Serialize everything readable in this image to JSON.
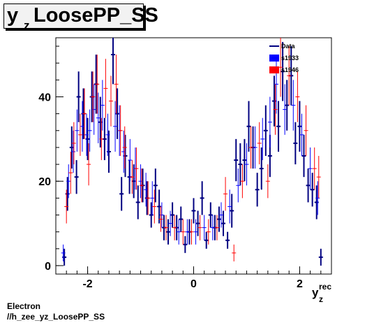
{
  "title": {
    "main": "y",
    "sub": "z",
    "rest": "LoosePP_SS"
  },
  "footer": {
    "line1": "Electron",
    "line2": "//h_zee_yz_LoosePP_SS"
  },
  "chart_data": {
    "type": "scatter",
    "xlabel": {
      "main": "y",
      "sub": "z",
      "sup": "rec"
    },
    "ylabel": "",
    "xlim": [
      -2.6,
      2.6
    ],
    "ylim": [
      -2,
      54
    ],
    "x_ticks": [
      -2,
      0,
      2
    ],
    "x_tick_labels": [
      "-2",
      "0",
      "2"
    ],
    "y_ticks": [
      0,
      20,
      40
    ],
    "y_tick_labels": [
      "0",
      "20",
      "40"
    ],
    "grid": false,
    "legend_placement": "top-right",
    "legend": [
      {
        "label": "Data",
        "color": "#000080",
        "marker": "line"
      },
      {
        "label": "s1933",
        "color": "#0000ff",
        "marker": "box"
      },
      {
        "label": "s1946",
        "color": "#ff0000",
        "marker": "box"
      }
    ],
    "series": [
      {
        "name": "Data",
        "color": "#000080",
        "points": [
          [
            -2.44,
            2,
            2
          ],
          [
            -2.38,
            17,
            4
          ],
          [
            -2.3,
            28,
            5
          ],
          [
            -2.21,
            21,
            4
          ],
          [
            -2.17,
            40,
            6
          ],
          [
            -2.08,
            36,
            6
          ],
          [
            -2.0,
            30,
            5
          ],
          [
            -1.92,
            40,
            6
          ],
          [
            -1.84,
            43,
            7
          ],
          [
            -1.76,
            34,
            6
          ],
          [
            -1.68,
            30,
            5
          ],
          [
            -1.6,
            27,
            5
          ],
          [
            -1.52,
            50,
            7
          ],
          [
            -1.44,
            36,
            6
          ],
          [
            -1.36,
            17,
            4
          ],
          [
            -1.29,
            26,
            5
          ],
          [
            -1.21,
            21,
            4
          ],
          [
            -1.13,
            20,
            4
          ],
          [
            -1.05,
            15,
            4
          ],
          [
            -0.96,
            19,
            4
          ],
          [
            -0.88,
            16,
            4
          ],
          [
            -0.8,
            12,
            3
          ],
          [
            -0.72,
            19,
            4
          ],
          [
            -0.65,
            14,
            4
          ],
          [
            -0.56,
            9,
            3
          ],
          [
            -0.48,
            8,
            3
          ],
          [
            -0.4,
            12,
            3
          ],
          [
            -0.32,
            9,
            3
          ],
          [
            -0.24,
            11,
            3
          ],
          [
            -0.16,
            5,
            2
          ],
          [
            -0.08,
            8,
            3
          ],
          [
            0.0,
            13,
            3
          ],
          [
            0.08,
            10,
            3
          ],
          [
            0.16,
            16,
            4
          ],
          [
            0.24,
            6,
            2
          ],
          [
            0.32,
            12,
            3
          ],
          [
            0.4,
            9,
            3
          ],
          [
            0.48,
            11,
            3
          ],
          [
            0.56,
            10,
            3
          ],
          [
            0.64,
            6,
            2
          ],
          [
            0.72,
            13,
            4
          ],
          [
            0.8,
            25,
            5
          ],
          [
            0.88,
            24,
            5
          ],
          [
            0.96,
            25,
            5
          ],
          [
            1.04,
            33,
            6
          ],
          [
            1.12,
            28,
            5
          ],
          [
            1.2,
            18,
            4
          ],
          [
            1.28,
            23,
            5
          ],
          [
            1.36,
            32,
            6
          ],
          [
            1.44,
            26,
            5
          ],
          [
            1.52,
            39,
            6
          ],
          [
            1.6,
            33,
            6
          ],
          [
            1.68,
            46,
            7
          ],
          [
            1.76,
            38,
            6
          ],
          [
            1.84,
            45,
            7
          ],
          [
            1.92,
            29,
            5
          ],
          [
            2.0,
            33,
            6
          ],
          [
            2.08,
            26,
            5
          ],
          [
            2.16,
            19,
            4
          ],
          [
            2.24,
            18,
            4
          ],
          [
            2.32,
            15,
            4
          ],
          [
            2.4,
            2,
            2
          ]
        ]
      },
      {
        "name": "s1933",
        "color": "#0000ff",
        "points": [
          [
            -2.46,
            3,
            2
          ],
          [
            -2.36,
            20,
            4
          ],
          [
            -2.27,
            27,
            5
          ],
          [
            -2.2,
            32,
            5
          ],
          [
            -2.1,
            33,
            6
          ],
          [
            -2.02,
            31,
            5
          ],
          [
            -1.96,
            32,
            5
          ],
          [
            -1.88,
            37,
            6
          ],
          [
            -1.8,
            35,
            6
          ],
          [
            -1.72,
            38,
            6
          ],
          [
            -1.62,
            31,
            5
          ],
          [
            -1.48,
            33,
            6
          ],
          [
            -1.4,
            32,
            6
          ],
          [
            -1.32,
            27,
            5
          ],
          [
            -1.2,
            25,
            5
          ],
          [
            -1.1,
            23,
            5
          ],
          [
            -1.0,
            20,
            4
          ],
          [
            -0.9,
            18,
            4
          ],
          [
            -0.78,
            16,
            4
          ],
          [
            -0.6,
            12,
            3
          ],
          [
            -0.44,
            10,
            3
          ],
          [
            -0.28,
            8,
            3
          ],
          [
            -0.12,
            8,
            3
          ],
          [
            0.04,
            8,
            3
          ],
          [
            0.2,
            9,
            3
          ],
          [
            0.36,
            9,
            3
          ],
          [
            0.52,
            12,
            3
          ],
          [
            0.68,
            14,
            4
          ],
          [
            0.84,
            19,
            4
          ],
          [
            1.0,
            24,
            5
          ],
          [
            1.16,
            28,
            5
          ],
          [
            1.3,
            30,
            5
          ],
          [
            1.44,
            34,
            6
          ],
          [
            1.56,
            43,
            7
          ],
          [
            1.72,
            37,
            6
          ],
          [
            1.88,
            38,
            6
          ],
          [
            2.04,
            31,
            5
          ],
          [
            2.2,
            23,
            5
          ],
          [
            2.34,
            16,
            4
          ]
        ]
      },
      {
        "name": "s1946",
        "color": "#ff0000",
        "points": [
          [
            -2.4,
            14,
            4
          ],
          [
            -2.32,
            22,
            5
          ],
          [
            -2.26,
            29,
            5
          ],
          [
            -2.14,
            31,
            5
          ],
          [
            -2.06,
            36,
            6
          ],
          [
            -1.98,
            24,
            5
          ],
          [
            -1.9,
            40,
            6
          ],
          [
            -1.82,
            43,
            7
          ],
          [
            -1.74,
            30,
            5
          ],
          [
            -1.66,
            42,
            7
          ],
          [
            -1.56,
            39,
            6
          ],
          [
            -1.46,
            43,
            7
          ],
          [
            -1.38,
            32,
            6
          ],
          [
            -1.3,
            28,
            5
          ],
          [
            -1.16,
            21,
            4
          ],
          [
            -1.08,
            23,
            5
          ],
          [
            -0.98,
            19,
            4
          ],
          [
            -0.86,
            16,
            4
          ],
          [
            -0.74,
            14,
            4
          ],
          [
            -0.62,
            11,
            3
          ],
          [
            -0.52,
            9,
            3
          ],
          [
            -0.36,
            9,
            3
          ],
          [
            -0.2,
            8,
            3
          ],
          [
            -0.04,
            8,
            3
          ],
          [
            0.12,
            9,
            3
          ],
          [
            0.28,
            8,
            3
          ],
          [
            0.44,
            9,
            3
          ],
          [
            0.6,
            17,
            4
          ],
          [
            0.76,
            3,
            2
          ],
          [
            0.92,
            20,
            4
          ],
          [
            1.08,
            28,
            5
          ],
          [
            1.24,
            29,
            5
          ],
          [
            1.4,
            20,
            4
          ],
          [
            1.54,
            37,
            6
          ],
          [
            1.64,
            47,
            7
          ],
          [
            1.8,
            45,
            7
          ],
          [
            1.96,
            40,
            6
          ],
          [
            2.12,
            32,
            6
          ],
          [
            2.28,
            23,
            5
          ],
          [
            2.36,
            21,
            5
          ]
        ]
      }
    ]
  }
}
